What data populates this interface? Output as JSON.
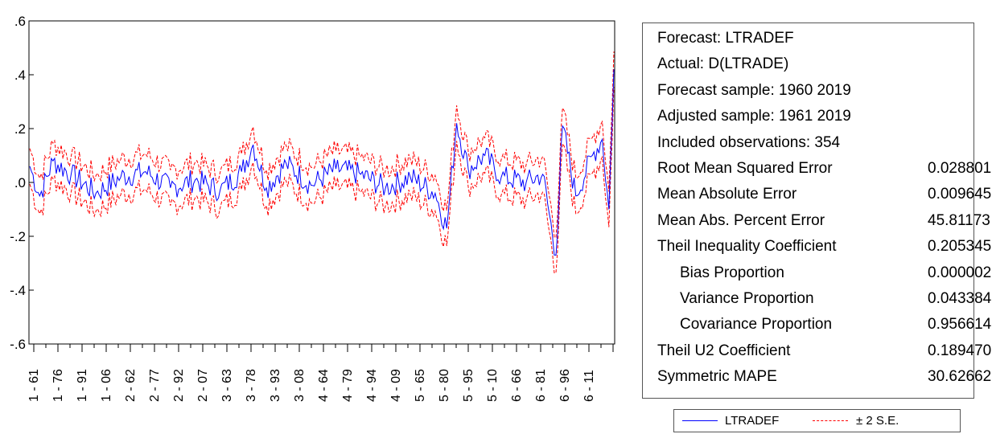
{
  "chart_data": {
    "type": "line",
    "xlabel": "",
    "ylabel": "",
    "ylim": [
      -0.6,
      0.6
    ],
    "yticks": [
      -0.6,
      -0.4,
      -0.2,
      0.0,
      0.2,
      0.4,
      0.6
    ],
    "ytick_labels": [
      "-.6",
      "-.4",
      "-.2",
      ".0",
      ".2",
      ".4",
      ".6"
    ],
    "x_tick_labels": [
      "1 - 61",
      "1 - 76",
      "1 - 91",
      "1 - 06",
      "2 - 62",
      "2 - 77",
      "2 - 92",
      "2 - 07",
      "3 - 63",
      "3 - 78",
      "3 - 93",
      "3 - 08",
      "4 - 64",
      "4 - 79",
      "4 - 94",
      "4 - 09",
      "5 - 65",
      "5 - 80",
      "5 - 95",
      "5 - 10",
      "6 - 66",
      "6 - 81",
      "6 - 96",
      "6 - 11"
    ],
    "n_obs": 354,
    "grid": false,
    "series": [
      {
        "name": "LTRADEF",
        "color": "#0000ff",
        "style": "solid",
        "anchors": [
          [
            0,
            0.06
          ],
          [
            6,
            -0.05
          ],
          [
            14,
            0.08
          ],
          [
            25,
            0.03
          ],
          [
            40,
            -0.04
          ],
          [
            55,
            0.02
          ],
          [
            70,
            0.04
          ],
          [
            85,
            -0.02
          ],
          [
            100,
            0.01
          ],
          [
            115,
            -0.03
          ],
          [
            128,
            0.04
          ],
          [
            135,
            0.14
          ],
          [
            143,
            -0.02
          ],
          [
            155,
            0.07
          ],
          [
            170,
            -0.01
          ],
          [
            185,
            0.05
          ],
          [
            200,
            0.03
          ],
          [
            215,
            -0.02
          ],
          [
            230,
            0.02
          ],
          [
            245,
            -0.04
          ],
          [
            252,
            -0.17
          ],
          [
            258,
            0.22
          ],
          [
            265,
            0.05
          ],
          [
            275,
            0.1
          ],
          [
            285,
            0.02
          ],
          [
            300,
            0.0
          ],
          [
            310,
            0.03
          ],
          [
            318,
            -0.27
          ],
          [
            322,
            0.21
          ],
          [
            330,
            -0.05
          ],
          [
            340,
            0.1
          ],
          [
            346,
            0.16
          ],
          [
            350,
            -0.1
          ],
          [
            353,
            0.42
          ]
        ]
      },
      {
        "name": "± 2 S.E.",
        "color": "#ff0000",
        "style": "dashed",
        "band_halfwidth": 0.066
      }
    ]
  },
  "stats": {
    "rows": [
      {
        "label": "Forecast: LTRADEF",
        "value": ""
      },
      {
        "label": "Actual: D(LTRADE)",
        "value": ""
      },
      {
        "label": "Forecast sample: 1960 2019",
        "value": ""
      },
      {
        "label": "Adjusted sample: 1961 2019",
        "value": ""
      },
      {
        "label": "Included observations: 354",
        "value": ""
      },
      {
        "label": "Root Mean Squared Error",
        "value": "0.028801"
      },
      {
        "label": "Mean Absolute Error",
        "value": "0.009645"
      },
      {
        "label": "Mean Abs. Percent Error",
        "value": "45.81173"
      },
      {
        "label": "Theil Inequality Coefficient",
        "value": "0.205345"
      },
      {
        "label": "Bias Proportion",
        "value": "0.000002",
        "indent": true
      },
      {
        "label": "Variance Proportion",
        "value": "0.043384",
        "indent": true
      },
      {
        "label": "Covariance Proportion",
        "value": "0.956614",
        "indent": true
      },
      {
        "label": "Theil U2 Coefficient",
        "value": "0.189470"
      },
      {
        "label": "Symmetric MAPE",
        "value": "30.62662"
      }
    ]
  },
  "legend": {
    "forecast_label": "LTRADEF",
    "se_label": "± 2 S.E.",
    "forecast_color": "#0000ff",
    "se_color": "#ff0000"
  }
}
